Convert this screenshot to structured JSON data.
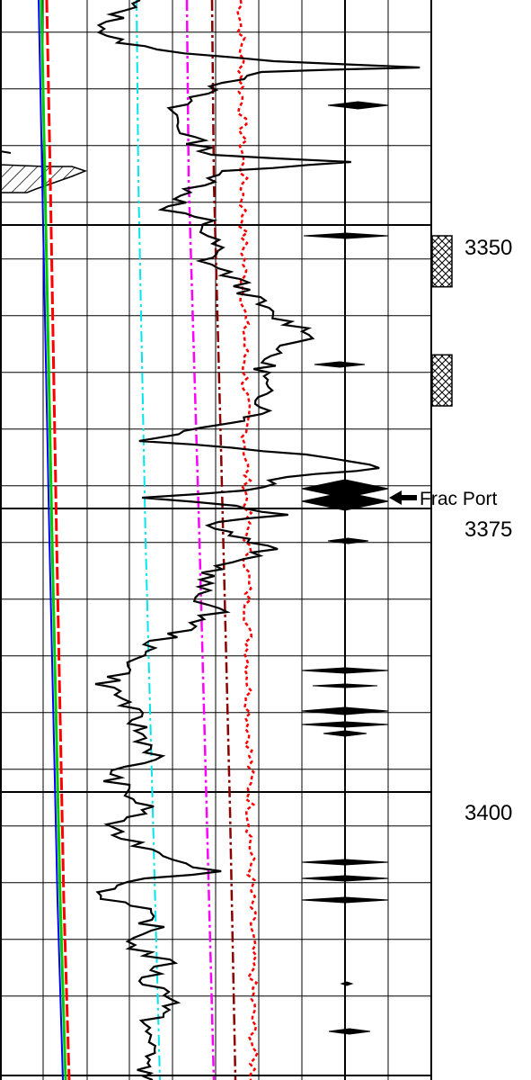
{
  "chart_data": {
    "type": "line",
    "depth_labels": [
      "3350",
      "3375",
      "3400"
    ],
    "depth_ticks": [
      3350,
      3375,
      3400
    ],
    "depth_range": [
      3322,
      3417
    ],
    "annotation": {
      "label": "Frac Port",
      "depth": 3373.5
    },
    "colors": {
      "grid": "#000000",
      "green_curve": "#00cc00",
      "blue_curve": "#0000ff",
      "red_curve": "#ff0000",
      "cyan_curve": "#00e5ee",
      "magenta_curve": "#ff00ff",
      "darkred_curve": "#8b0000",
      "black_curve": "#000000"
    },
    "perforation_intervals": [
      [
        3350,
        3354.5
      ],
      [
        3360.5,
        3365
      ]
    ],
    "series": []
  }
}
